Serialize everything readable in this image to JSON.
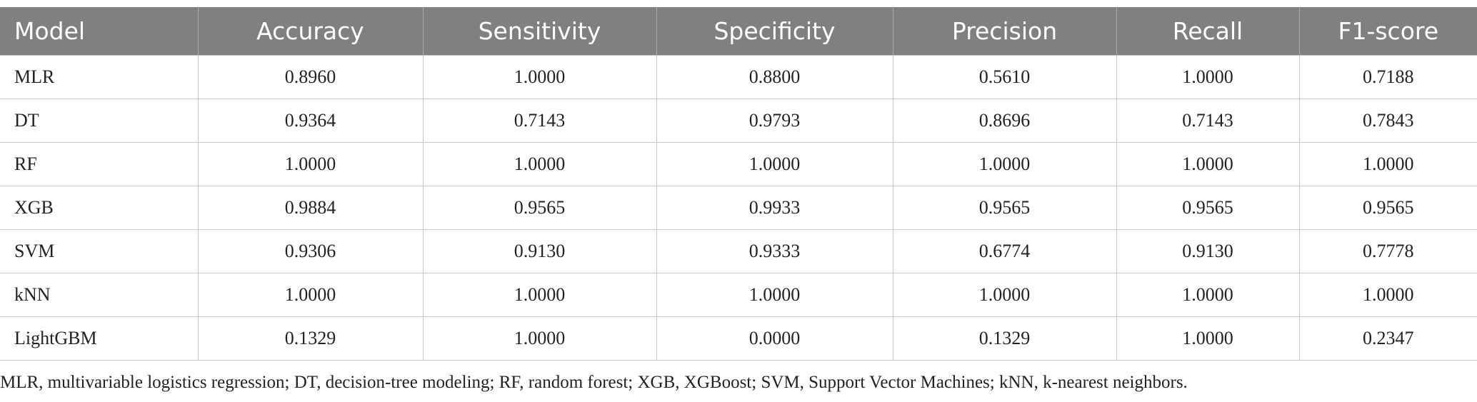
{
  "table": {
    "header": [
      "Model",
      "Accuracy",
      "Sensitivity",
      "Specificity",
      "Precision",
      "Recall",
      "F1-score"
    ],
    "rows": [
      [
        "MLR",
        "0.8960",
        "1.0000",
        "0.8800",
        "0.5610",
        "1.0000",
        "0.7188"
      ],
      [
        "DT",
        "0.9364",
        "0.7143",
        "0.9793",
        "0.8696",
        "0.7143",
        "0.7843"
      ],
      [
        "RF",
        "1.0000",
        "1.0000",
        "1.0000",
        "1.0000",
        "1.0000",
        "1.0000"
      ],
      [
        "XGB",
        "0.9884",
        "0.9565",
        "0.9933",
        "0.9565",
        "0.9565",
        "0.9565"
      ],
      [
        "SVM",
        "0.9306",
        "0.9130",
        "0.9333",
        "0.6774",
        "0.9130",
        "0.7778"
      ],
      [
        "kNN",
        "1.0000",
        "1.0000",
        "1.0000",
        "1.0000",
        "1.0000",
        "1.0000"
      ],
      [
        "LightGBM",
        "0.1329",
        "1.0000",
        "0.0000",
        "0.1329",
        "1.0000",
        "0.2347"
      ]
    ]
  },
  "footnote": "MLR, multivariable logistics regression; DT, decision-tree modeling; RF, random forest; XGB, XGBoost; SVM, Support Vector Machines; kNN, k-nearest neighbors."
}
